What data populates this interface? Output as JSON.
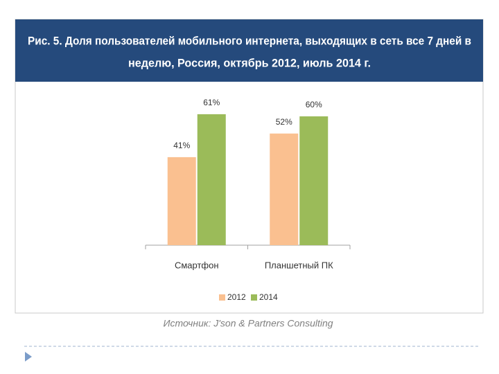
{
  "chart_data": {
    "type": "bar",
    "title": [
      "Рис. 5. Доля пользователей мобильного интернета, выходящих в сеть все 7 дней в",
      "неделю, Россия, октябрь 2012, июль 2014 г."
    ],
    "categories": [
      "Смартфон",
      "Планшетный ПК"
    ],
    "series": [
      {
        "name": "2012",
        "color": "#fac090",
        "values": [
          41,
          52
        ],
        "value_labels": [
          "41%",
          "52%"
        ]
      },
      {
        "name": "2014",
        "color": "#9bbb59",
        "values": [
          61,
          60
        ],
        "value_labels": [
          "61%",
          "60%"
        ]
      }
    ],
    "ylim": [
      0,
      100
    ],
    "legend": "bottom",
    "source": "Источник: J'son & Partners Consulting"
  }
}
